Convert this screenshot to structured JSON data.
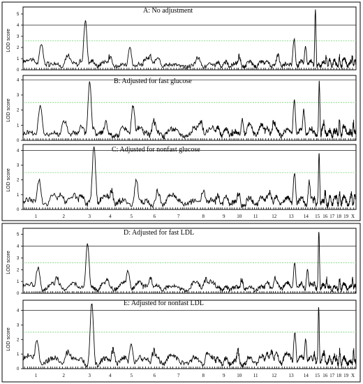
{
  "figure": {
    "chromosome_labels": [
      "1",
      "2",
      "3",
      "4",
      "5",
      "6",
      "7",
      "8",
      "9",
      "10",
      "11",
      "12",
      "13",
      "14",
      "15",
      "16",
      "17",
      "18",
      "19",
      "X"
    ],
    "y_axis_label": "LOD score",
    "colors": {
      "curve": "#000000",
      "significant_line": "#222222",
      "suggestive_line": "#6fd36f",
      "frame": "#000000"
    }
  },
  "chart_data": [
    {
      "type": "line",
      "title": "A: No adjustment",
      "ylabel": "LOD score",
      "ylim": [
        0,
        5.5
      ],
      "yticks": [
        "0",
        "1",
        "2",
        "3",
        "4",
        "5"
      ],
      "significant_threshold": 4.0,
      "suggestive_threshold": 2.6,
      "peaks": [
        {
          "chr": "1",
          "lod": 2.3
        },
        {
          "chr": "3",
          "lod": 4.4
        },
        {
          "chr": "5",
          "lod": 2.0
        },
        {
          "chr": "13",
          "lod": 2.8
        },
        {
          "chr": "14",
          "lod": 2.1
        },
        {
          "chr": "15",
          "lod": 5.4
        }
      ]
    },
    {
      "type": "line",
      "title": "B: Adjusted for fast glucose",
      "ylabel": "LOD score",
      "ylim": [
        0,
        4.2
      ],
      "yticks": [
        "0",
        "1",
        "2",
        "3",
        "4"
      ],
      "significant_threshold": 4.0,
      "suggestive_threshold": 2.5,
      "peaks": [
        {
          "chr": "1",
          "lod": 2.3
        },
        {
          "chr": "3",
          "lod": 3.9
        },
        {
          "chr": "5",
          "lod": 2.3
        },
        {
          "chr": "13",
          "lod": 2.6
        },
        {
          "chr": "14",
          "lod": 2.0
        },
        {
          "chr": "15",
          "lod": 3.9
        }
      ]
    },
    {
      "type": "line",
      "title": "C: Adjusted for nonfast glucose",
      "ylabel": "LOD score",
      "ylim": [
        0,
        4.3
      ],
      "yticks": [
        "0",
        "1",
        "2",
        "3",
        "4"
      ],
      "significant_threshold": 4.0,
      "suggestive_threshold": 2.5,
      "peaks": [
        {
          "chr": "1",
          "lod": 2.0
        },
        {
          "chr": "3",
          "lod": 4.3
        },
        {
          "chr": "5",
          "lod": 2.0
        },
        {
          "chr": "13",
          "lod": 2.5
        },
        {
          "chr": "14",
          "lod": 1.9
        },
        {
          "chr": "15",
          "lod": 3.8
        }
      ]
    },
    {
      "type": "line",
      "title": "D: Adjusted for fast LDL",
      "ylabel": "LOD score",
      "ylim": [
        0,
        5.4
      ],
      "yticks": [
        "0",
        "1",
        "2",
        "3",
        "4",
        "5"
      ],
      "significant_threshold": 4.0,
      "suggestive_threshold": 2.6,
      "peaks": [
        {
          "chr": "1",
          "lod": 2.2
        },
        {
          "chr": "3",
          "lod": 4.3
        },
        {
          "chr": "5",
          "lod": 1.9
        },
        {
          "chr": "13",
          "lod": 2.6
        },
        {
          "chr": "14",
          "lod": 2.0
        },
        {
          "chr": "15",
          "lod": 5.3
        }
      ]
    },
    {
      "type": "line",
      "title": "E: Adjusted for nonfast LDL",
      "ylabel": "LOD score",
      "ylim": [
        0,
        4.6
      ],
      "yticks": [
        "0",
        "1",
        "2",
        "3",
        "4"
      ],
      "significant_threshold": 4.0,
      "suggestive_threshold": 2.5,
      "peaks": [
        {
          "chr": "1",
          "lod": 2.0
        },
        {
          "chr": "3",
          "lod": 4.5
        },
        {
          "chr": "5",
          "lod": 1.8
        },
        {
          "chr": "13",
          "lod": 2.5
        },
        {
          "chr": "14",
          "lod": 2.0
        },
        {
          "chr": "15",
          "lod": 4.2
        }
      ]
    }
  ]
}
